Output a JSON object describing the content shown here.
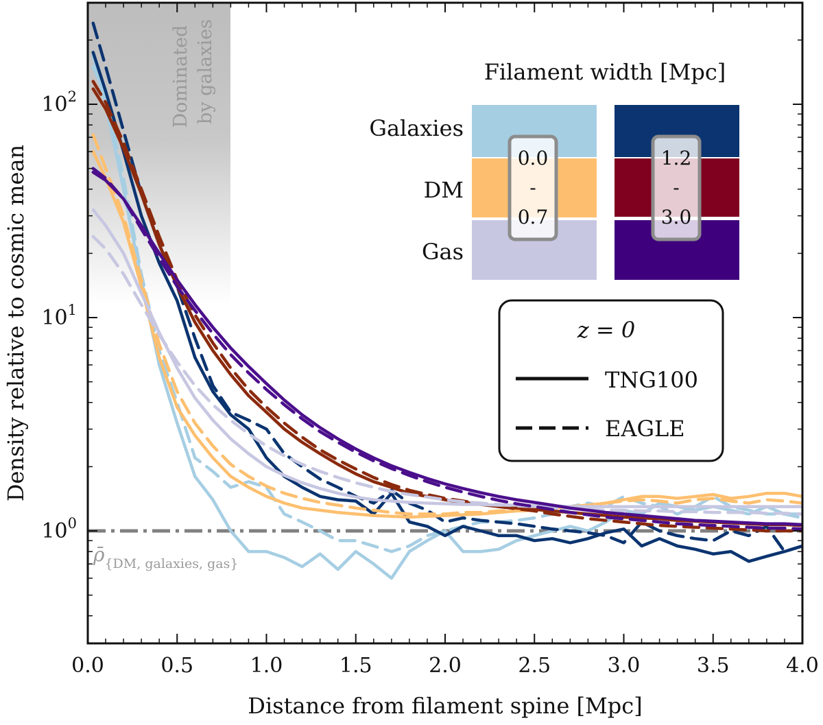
{
  "chart_data": {
    "type": "line",
    "xlabel": "Distance from filament spine [Mpc]",
    "ylabel": "Density relative to cosmic mean",
    "xlim": [
      0,
      4
    ],
    "ylim": [
      0.35,
      300
    ],
    "yscale": "log",
    "x_ticks": [
      "0.0",
      "0.5",
      "1.0",
      "1.5",
      "2.0",
      "2.5",
      "3.0",
      "3.5",
      "4.0"
    ],
    "y_ticks": [
      {
        "base": "10",
        "exp": "0",
        "value": 1
      },
      {
        "base": "10",
        "exp": "1",
        "value": 10
      },
      {
        "base": "10",
        "exp": "2",
        "value": 100
      }
    ],
    "shaded_region": {
      "x_range": [
        0,
        0.8
      ],
      "label_line1": "Dominated",
      "label_line2": "by galaxies"
    },
    "cosmic_mean": {
      "value": 1,
      "label": "ρ̄",
      "subscript": "{DM, galaxies, gas}"
    },
    "legend_widths": {
      "title": "Filament width [Mpc]",
      "rows": [
        "Galaxies",
        "DM",
        "Gas"
      ],
      "bins": [
        {
          "low": "0.0",
          "dash": "-",
          "high": "0.7"
        },
        {
          "low": "1.2",
          "dash": "-",
          "high": "3.0"
        }
      ]
    },
    "legend_runs": {
      "redshift": "z = 0",
      "items": [
        {
          "label": "TNG100",
          "style": "solid"
        },
        {
          "label": "EAGLE",
          "style": "dashed"
        }
      ]
    },
    "x": [
      0.03,
      0.1,
      0.2,
      0.3,
      0.4,
      0.5,
      0.6,
      0.7,
      0.8,
      0.9,
      1.0,
      1.1,
      1.2,
      1.3,
      1.4,
      1.5,
      1.6,
      1.7,
      1.8,
      1.9,
      2.0,
      2.1,
      2.2,
      2.3,
      2.4,
      2.5,
      2.6,
      2.7,
      2.8,
      2.9,
      3.0,
      3.1,
      3.2,
      3.3,
      3.4,
      3.5,
      3.6,
      3.7,
      3.8,
      3.9,
      4.0
    ],
    "series": [
      {
        "name": "Galaxies 0.0-0.7 TNG100",
        "component": "Galaxies",
        "width_bin": "0.0-0.7",
        "run": "TNG100",
        "color": "#a6cee3",
        "values": [
          170,
          100,
          40,
          15,
          6,
          3.2,
          1.8,
          1.4,
          1.0,
          0.8,
          0.8,
          0.75,
          0.68,
          0.78,
          0.66,
          0.8,
          0.7,
          0.6,
          0.8,
          0.9,
          1.0,
          0.8,
          0.8,
          0.82,
          0.9,
          0.95,
          1.0,
          1.05,
          1.0,
          1.1,
          1.25,
          1.2,
          1.35,
          1.3,
          1.25,
          1.3,
          1.25,
          1.2,
          1.3,
          1.2,
          1.2
        ]
      },
      {
        "name": "Galaxies 0.0-0.7 EAGLE",
        "component": "Galaxies",
        "width_bin": "0.0-0.7",
        "run": "EAGLE",
        "color": "#a6cee3",
        "values": [
          150,
          110,
          45,
          16,
          7,
          4,
          2.2,
          1.9,
          1.6,
          1.7,
          1.6,
          1.2,
          1.1,
          1.0,
          0.9,
          0.9,
          0.85,
          0.8,
          0.85,
          0.95,
          1.0,
          1.05,
          1.1,
          1.1,
          1.12,
          1.15,
          1.2,
          1.3,
          1.35,
          1.3,
          1.45,
          1.35,
          1.3,
          1.2,
          1.3,
          1.45,
          1.3,
          1.25,
          1.2,
          1.2,
          1.15
        ]
      },
      {
        "name": "Galaxies 1.2-3.0 TNG100",
        "component": "Galaxies",
        "width_bin": "1.2-3.0",
        "run": "TNG100",
        "color": "#0b3470",
        "values": [
          175,
          115,
          60,
          30,
          18,
          12,
          6.5,
          4.5,
          3.5,
          3.0,
          2.2,
          1.8,
          1.6,
          1.45,
          1.4,
          1.38,
          1.2,
          1.5,
          1.1,
          1.05,
          0.95,
          1.05,
          1.0,
          0.95,
          0.95,
          0.9,
          0.92,
          0.88,
          0.92,
          0.98,
          1.02,
          0.85,
          0.92,
          0.85,
          0.82,
          0.78,
          0.8,
          0.72,
          0.76,
          0.8,
          0.85
        ]
      },
      {
        "name": "Galaxies 1.2-3.0 EAGLE",
        "component": "Galaxies",
        "width_bin": "1.2-3.0",
        "run": "EAGLE",
        "color": "#0b3470",
        "values": [
          240,
          150,
          75,
          38,
          22,
          14,
          8,
          4.8,
          3.6,
          3.3,
          3.0,
          2.3,
          2.0,
          1.75,
          1.6,
          1.45,
          1.35,
          1.55,
          1.35,
          1.25,
          1.1,
          1.15,
          1.12,
          1.1,
          1.08,
          1.05,
          1.02,
          1.0,
          0.98,
          0.95,
          0.88,
          1.1,
          1.0,
          0.95,
          0.92,
          0.9,
          1.0,
          0.95,
          1.05,
          0.8,
          0.85
        ]
      },
      {
        "name": "DM 0.0-0.7 TNG100",
        "component": "DM",
        "width_bin": "0.0-0.7",
        "run": "TNG100",
        "color": "#fdbf6f",
        "values": [
          60,
          45,
          28,
          14,
          6.5,
          3.8,
          2.8,
          2.2,
          1.8,
          1.6,
          1.45,
          1.35,
          1.28,
          1.25,
          1.22,
          1.2,
          1.18,
          1.17,
          1.16,
          1.17,
          1.18,
          1.19,
          1.2,
          1.22,
          1.24,
          1.25,
          1.28,
          1.3,
          1.32,
          1.35,
          1.4,
          1.45,
          1.45,
          1.42,
          1.45,
          1.48,
          1.42,
          1.45,
          1.5,
          1.5,
          1.45
        ]
      },
      {
        "name": "DM 0.0-0.7 EAGLE",
        "component": "DM",
        "width_bin": "0.0-0.7",
        "run": "EAGLE",
        "color": "#fdbf6f",
        "values": [
          72,
          50,
          30,
          15,
          7.5,
          4.5,
          3.2,
          2.5,
          2.05,
          1.8,
          1.62,
          1.5,
          1.42,
          1.36,
          1.32,
          1.28,
          1.25,
          1.22,
          1.2,
          1.2,
          1.2,
          1.22,
          1.22,
          1.24,
          1.25,
          1.26,
          1.28,
          1.3,
          1.32,
          1.35,
          1.38,
          1.4,
          1.38,
          1.35,
          1.4,
          1.42,
          1.38,
          1.35,
          1.4,
          1.38,
          1.35
        ]
      },
      {
        "name": "DM 1.2-3.0 TNG100",
        "component": "DM",
        "width_bin": "1.2-3.0",
        "run": "TNG100",
        "color": "#8b2a0d",
        "values": [
          118,
          95,
          62,
          38,
          22,
          14,
          9.5,
          7.0,
          5.4,
          4.3,
          3.6,
          3.0,
          2.6,
          2.3,
          2.05,
          1.85,
          1.7,
          1.6,
          1.5,
          1.45,
          1.4,
          1.36,
          1.33,
          1.3,
          1.28,
          1.26,
          1.24,
          1.22,
          1.2,
          1.18,
          1.16,
          1.15,
          1.14,
          1.12,
          1.11,
          1.1,
          1.09,
          1.08,
          1.07,
          1.07,
          1.06
        ]
      },
      {
        "name": "DM 1.2-3.0 EAGLE",
        "component": "DM",
        "width_bin": "1.2-3.0",
        "run": "EAGLE",
        "color": "#8b2a0d",
        "values": [
          128,
          102,
          66,
          40,
          24,
          15,
          10.3,
          7.6,
          5.8,
          4.6,
          3.8,
          3.2,
          2.75,
          2.4,
          2.15,
          1.95,
          1.78,
          1.65,
          1.55,
          1.48,
          1.42,
          1.38,
          1.34,
          1.3,
          1.27,
          1.24,
          1.2,
          1.17,
          1.14,
          1.12,
          1.1,
          1.08,
          1.06,
          1.05,
          1.04,
          1.03,
          1.02,
          1.01,
          1.0,
          1.0,
          1.0
        ]
      },
      {
        "name": "Gas 0.0-0.7 TNG100",
        "component": "Gas",
        "width_bin": "0.0-0.7",
        "run": "TNG100",
        "color": "#c7c7e2",
        "values": [
          32,
          27,
          20,
          13,
          8.5,
          5.8,
          4.2,
          3.3,
          2.7,
          2.3,
          2.0,
          1.82,
          1.68,
          1.58,
          1.5,
          1.44,
          1.4,
          1.38,
          1.36,
          1.35,
          1.34,
          1.33,
          1.33,
          1.32,
          1.32,
          1.31,
          1.31,
          1.3,
          1.3,
          1.3,
          1.3,
          1.3,
          1.3,
          1.3,
          1.3,
          1.3,
          1.3,
          1.3,
          1.3,
          1.3,
          1.3
        ]
      },
      {
        "name": "Gas 0.0-0.7 EAGLE",
        "component": "Gas",
        "width_bin": "0.0-0.7",
        "run": "EAGLE",
        "color": "#c7c7e2",
        "values": [
          24,
          21,
          16,
          11.5,
          8.3,
          6.2,
          4.8,
          3.9,
          3.3,
          2.85,
          2.5,
          2.25,
          2.05,
          1.9,
          1.78,
          1.68,
          1.6,
          1.53,
          1.48,
          1.44,
          1.4,
          1.37,
          1.35,
          1.33,
          1.31,
          1.3,
          1.28,
          1.27,
          1.26,
          1.25,
          1.25,
          1.24,
          1.24,
          1.23,
          1.23,
          1.22,
          1.22,
          1.22,
          1.21,
          1.21,
          1.2
        ]
      },
      {
        "name": "Gas 1.2-3.0 TNG100",
        "component": "Gas",
        "width_bin": "1.2-3.0",
        "run": "TNG100",
        "color": "#4b0f8c",
        "values": [
          48,
          44,
          36,
          27,
          20,
          15,
          11.5,
          9.0,
          7.2,
          5.9,
          4.9,
          4.1,
          3.5,
          3.05,
          2.7,
          2.42,
          2.2,
          2.02,
          1.88,
          1.76,
          1.66,
          1.58,
          1.51,
          1.45,
          1.4,
          1.36,
          1.32,
          1.28,
          1.25,
          1.22,
          1.2,
          1.18,
          1.16,
          1.14,
          1.12,
          1.11,
          1.1,
          1.09,
          1.08,
          1.08,
          1.07
        ]
      },
      {
        "name": "Gas 1.2-3.0 EAGLE",
        "component": "Gas",
        "width_bin": "1.2-3.0",
        "run": "EAGLE",
        "color": "#4b0f8c",
        "values": [
          50,
          45,
          36,
          26,
          19,
          14,
          10.8,
          8.4,
          6.7,
          5.5,
          4.6,
          3.9,
          3.35,
          2.92,
          2.6,
          2.34,
          2.13,
          1.96,
          1.82,
          1.7,
          1.6,
          1.52,
          1.45,
          1.39,
          1.34,
          1.3,
          1.26,
          1.22,
          1.19,
          1.16,
          1.14,
          1.12,
          1.1,
          1.08,
          1.07,
          1.06,
          1.05,
          1.04,
          1.03,
          1.03,
          1.02
        ]
      }
    ],
    "colors": {
      "galaxies_narrow": "#a6cee3",
      "galaxies_wide": "#0b3470",
      "dm_narrow": "#fdbf6f",
      "dm_wide": "#800020",
      "gas_narrow": "#c7c7e2",
      "gas_wide": "#3f007d",
      "label_galaxies": "#144a8a",
      "label_dm": "#9a3412",
      "label_gas": "#5b1c96",
      "mean_line": "#808080"
    }
  }
}
